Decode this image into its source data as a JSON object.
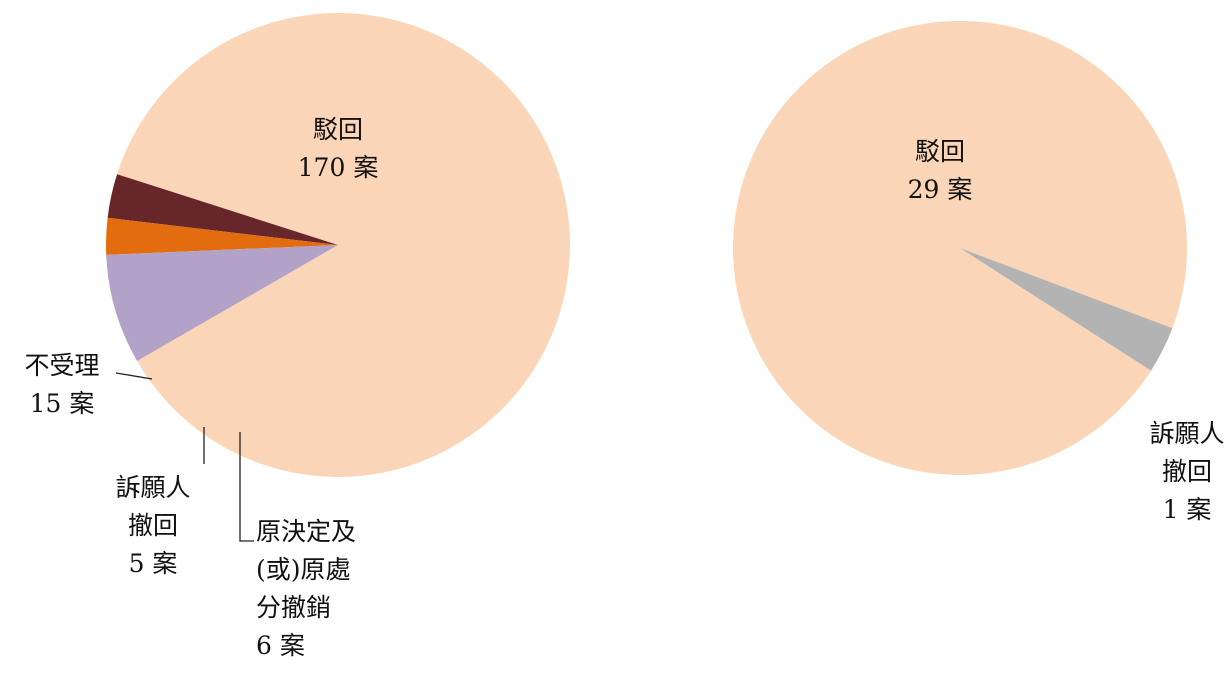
{
  "chart_data": [
    {
      "type": "pie",
      "slices": [
        {
          "label": [
            "駁回",
            "170 案"
          ],
          "value": 170,
          "color": "#FAD5B7"
        },
        {
          "label": [
            "原決定及",
            "(或)原處",
            "分撤銷",
            "6 案"
          ],
          "value": 6,
          "color": "#66262A"
        },
        {
          "label": [
            "訴願人",
            "撤回",
            "5 案"
          ],
          "value": 5,
          "color": "#E36C0E"
        },
        {
          "label": [
            "不受理",
            "15 案"
          ],
          "value": 15,
          "color": "#B2A2C7"
        }
      ]
    },
    {
      "type": "pie",
      "slices": [
        {
          "label": [
            "駁回",
            "29 案"
          ],
          "value": 29,
          "color": "#FAD5B7"
        },
        {
          "label": [
            "訴願人",
            "撤回",
            "1 案"
          ],
          "value": 1,
          "color": "#B3B3B3"
        }
      ]
    }
  ]
}
